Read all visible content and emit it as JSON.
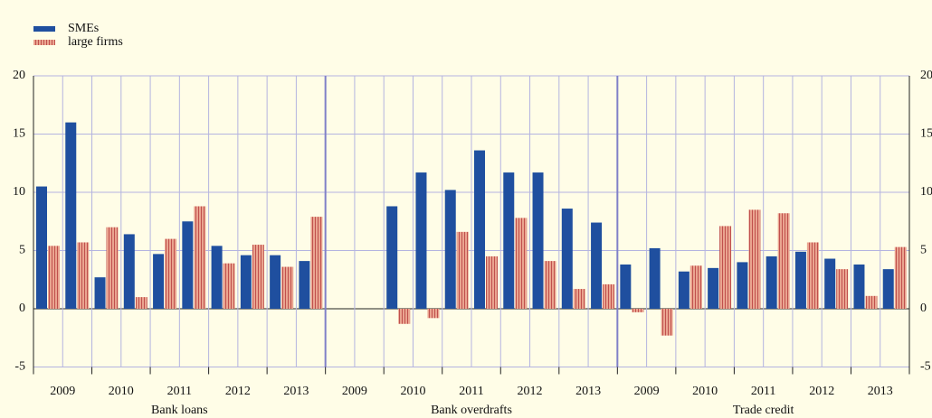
{
  "chart_data": {
    "type": "bar",
    "groups": [
      "Bank loans",
      "Bank overdrafts",
      "Trade credit"
    ],
    "years": [
      "2009",
      "2010",
      "2011",
      "2012",
      "2013"
    ],
    "series": [
      {
        "name": "SMEs",
        "color": "#1f4f9f",
        "values": [
          10.5,
          16.0,
          2.7,
          6.4,
          4.7,
          7.5,
          5.4,
          4.6,
          4.6,
          4.1,
          null,
          null,
          8.8,
          11.7,
          10.2,
          13.6,
          11.7,
          11.7,
          8.6,
          7.4,
          3.8,
          5.2,
          3.2,
          3.5,
          4.0,
          4.5,
          4.9,
          4.3,
          3.8,
          3.4
        ]
      },
      {
        "name": "large firms",
        "color": "#eaa590",
        "hatch_color": "#c0504d",
        "values": [
          5.4,
          5.7,
          7.0,
          1.0,
          6.0,
          8.8,
          3.9,
          5.5,
          3.6,
          7.9,
          null,
          null,
          -1.3,
          -0.8,
          6.6,
          4.5,
          7.8,
          4.1,
          1.7,
          2.1,
          -0.3,
          -2.3,
          3.7,
          7.1,
          8.5,
          8.2,
          5.7,
          3.4,
          1.1,
          5.3
        ]
      }
    ],
    "ylim": [
      -5,
      20
    ],
    "yticks": [
      -5,
      0,
      5,
      10,
      15,
      20
    ],
    "grid": true
  }
}
